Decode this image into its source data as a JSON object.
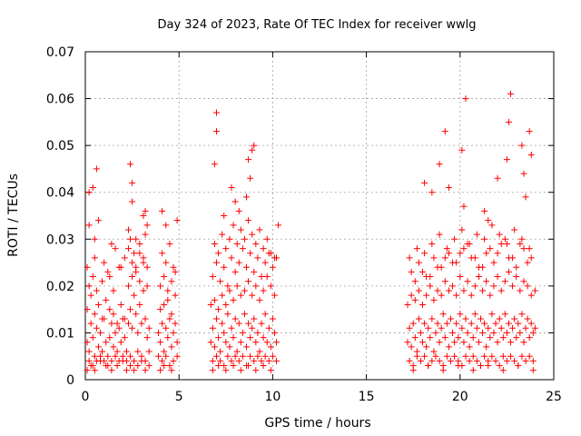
{
  "chart_data": {
    "type": "scatter",
    "title": "Day 324 of 2023, Rate Of TEC Index for receiver wwlg",
    "xlabel": "GPS time / hours",
    "ylabel": "ROTI / TECUs",
    "xlim": [
      0,
      25
    ],
    "ylim": [
      0,
      0.07
    ],
    "x_ticks": [
      0,
      5,
      10,
      15,
      20,
      25
    ],
    "x_tick_labels": [
      "0",
      "5",
      "10",
      "15",
      "20",
      "25"
    ],
    "y_ticks": [
      0,
      0.01,
      0.02,
      0.03,
      0.04,
      0.05,
      0.06,
      0.07
    ],
    "y_tick_labels": [
      "0",
      "0.01",
      "0.02",
      "0.03",
      "0.04",
      "0.05",
      "0.06",
      "0.07"
    ],
    "grid": true,
    "marker": "plus",
    "color": "#ff0000",
    "series": [
      {
        "x": [
          0.1,
          0.2,
          0.3,
          0.4,
          0.5,
          0.6,
          0.7,
          0.8,
          0.9,
          1.0,
          1.1,
          1.2,
          1.3,
          1.4,
          1.5,
          1.6,
          1.7,
          1.8,
          1.9,
          2.0,
          2.1,
          2.2,
          2.3,
          2.4,
          2.5,
          2.6,
          2.7,
          2.8,
          2.9,
          3.0,
          3.1,
          3.2,
          3.3,
          3.4,
          0.1,
          0.2,
          0.3,
          0.4,
          0.5,
          0.6,
          0.7,
          0.8,
          0.9,
          1.0,
          1.1,
          1.2,
          1.3,
          1.4,
          1.5,
          1.6,
          1.7,
          1.8,
          1.9,
          2.0,
          2.1,
          2.2,
          2.3,
          2.4,
          2.5,
          2.6,
          2.7,
          2.8,
          2.9,
          3.0,
          3.1,
          3.2,
          3.3,
          3.4,
          0.1,
          0.2,
          0.4,
          0.5,
          0.6,
          0.9,
          1.2,
          1.5,
          1.8,
          2.3,
          2.4,
          2.5,
          2.6,
          2.7,
          2.9,
          3.1,
          3.2,
          3.3,
          0.2,
          0.5,
          0.7,
          1.4,
          2.4,
          2.5,
          3.2,
          0.1,
          0.3,
          0.5,
          0.8,
          1.1,
          1.4,
          1.7,
          2.0,
          2.2,
          2.4,
          2.6,
          2.8,
          3.0,
          3.2,
          3.4,
          0.2,
          0.4,
          0.6,
          1.0,
          1.3,
          1.6,
          1.9,
          2.1,
          2.3,
          2.5,
          2.7,
          2.9,
          3.1,
          3.3
        ],
        "y": [
          0.008,
          0.006,
          0.012,
          0.009,
          0.005,
          0.011,
          0.007,
          0.01,
          0.006,
          0.013,
          0.008,
          0.005,
          0.009,
          0.012,
          0.007,
          0.01,
          0.006,
          0.011,
          0.008,
          0.013,
          0.009,
          0.006,
          0.012,
          0.015,
          0.011,
          0.018,
          0.014,
          0.01,
          0.016,
          0.012,
          0.019,
          0.013,
          0.009,
          0.011,
          0.015,
          0.004,
          0.018,
          0.003,
          0.014,
          0.004,
          0.016,
          0.005,
          0.013,
          0.004,
          0.017,
          0.003,
          0.015,
          0.004,
          0.014,
          0.005,
          0.012,
          0.004,
          0.016,
          0.005,
          0.013,
          0.004,
          0.02,
          0.005,
          0.022,
          0.004,
          0.024,
          0.006,
          0.021,
          0.005,
          0.025,
          0.004,
          0.02,
          0.006,
          0.024,
          0.02,
          0.022,
          0.026,
          0.019,
          0.021,
          0.023,
          0.019,
          0.024,
          0.028,
          0.03,
          0.025,
          0.027,
          0.023,
          0.029,
          0.026,
          0.031,
          0.024,
          0.04,
          0.03,
          0.034,
          0.029,
          0.046,
          0.042,
          0.036,
          0.002,
          0.003,
          0.002,
          0.004,
          0.003,
          0.002,
          0.003,
          0.004,
          0.002,
          0.003,
          0.002,
          0.003,
          0.004,
          0.002,
          0.003,
          0.033,
          0.041,
          0.045,
          0.025,
          0.022,
          0.028,
          0.024,
          0.026,
          0.032,
          0.038,
          0.03,
          0.027,
          0.035,
          0.033
        ]
      },
      {
        "x": [
          3.9,
          4.0,
          4.1,
          4.2,
          4.3,
          4.4,
          4.5,
          4.6,
          4.7,
          4.8,
          4.9,
          3.9,
          4.0,
          4.1,
          4.2,
          4.3,
          4.4,
          4.5,
          4.6,
          4.7,
          4.8,
          4.9,
          4.0,
          4.2,
          4.4,
          4.6,
          4.8,
          4.1,
          4.3,
          4.5,
          4.7,
          4.1,
          4.3,
          4.9,
          4.0,
          4.2,
          4.6
        ],
        "y": [
          0.01,
          0.008,
          0.012,
          0.006,
          0.011,
          0.009,
          0.013,
          0.007,
          0.01,
          0.012,
          0.008,
          0.005,
          0.015,
          0.004,
          0.016,
          0.005,
          0.017,
          0.003,
          0.014,
          0.004,
          0.018,
          0.005,
          0.02,
          0.022,
          0.019,
          0.021,
          0.023,
          0.027,
          0.025,
          0.029,
          0.024,
          0.036,
          0.033,
          0.034,
          0.002,
          0.003,
          0.002
        ]
      },
      {
        "x": [
          6.7,
          6.8,
          6.9,
          7.0,
          7.1,
          7.2,
          7.3,
          7.4,
          7.5,
          7.6,
          7.7,
          7.8,
          7.9,
          8.0,
          8.1,
          8.2,
          8.3,
          8.4,
          8.5,
          8.6,
          8.7,
          8.8,
          8.9,
          9.0,
          9.1,
          9.2,
          9.3,
          9.4,
          9.5,
          9.6,
          9.7,
          9.8,
          9.9,
          10.0,
          10.1,
          10.2,
          6.7,
          6.8,
          6.9,
          7.0,
          7.1,
          7.2,
          7.3,
          7.4,
          7.5,
          7.6,
          7.7,
          7.8,
          7.9,
          8.0,
          8.1,
          8.2,
          8.3,
          8.4,
          8.5,
          8.6,
          8.7,
          8.8,
          8.9,
          9.0,
          9.1,
          9.2,
          9.3,
          9.4,
          9.5,
          9.6,
          9.7,
          9.8,
          9.9,
          10.0,
          10.1,
          10.2,
          6.8,
          7.0,
          7.2,
          7.4,
          7.6,
          7.8,
          8.0,
          8.2,
          8.4,
          8.6,
          8.8,
          9.0,
          9.2,
          9.4,
          9.6,
          9.8,
          10.0,
          10.2,
          6.9,
          7.1,
          7.3,
          7.5,
          7.7,
          7.9,
          8.1,
          8.3,
          8.5,
          8.7,
          8.9,
          9.1,
          9.3,
          9.5,
          9.7,
          9.9,
          10.1,
          6.9,
          7.0,
          7.0,
          7.8,
          8.2,
          8.6,
          8.8,
          8.9,
          9.0,
          8.7,
          8.0,
          7.4,
          10.3,
          6.8,
          7.1,
          7.5,
          7.9,
          8.3,
          8.7,
          9.1,
          9.5,
          9.9
        ],
        "y": [
          0.008,
          0.011,
          0.007,
          0.013,
          0.009,
          0.006,
          0.012,
          0.01,
          0.008,
          0.014,
          0.007,
          0.011,
          0.009,
          0.013,
          0.006,
          0.012,
          0.008,
          0.01,
          0.014,
          0.007,
          0.012,
          0.009,
          0.011,
          0.013,
          0.008,
          0.01,
          0.006,
          0.012,
          0.009,
          0.014,
          0.008,
          0.011,
          0.007,
          0.013,
          0.01,
          0.008,
          0.016,
          0.004,
          0.017,
          0.005,
          0.015,
          0.004,
          0.018,
          0.003,
          0.016,
          0.005,
          0.019,
          0.004,
          0.017,
          0.005,
          0.02,
          0.004,
          0.018,
          0.005,
          0.019,
          0.003,
          0.021,
          0.005,
          0.018,
          0.004,
          0.02,
          0.005,
          0.017,
          0.004,
          0.019,
          0.005,
          0.022,
          0.004,
          0.02,
          0.005,
          0.018,
          0.004,
          0.022,
          0.025,
          0.021,
          0.024,
          0.02,
          0.026,
          0.023,
          0.025,
          0.028,
          0.024,
          0.027,
          0.023,
          0.026,
          0.022,
          0.025,
          0.027,
          0.024,
          0.026,
          0.029,
          0.027,
          0.031,
          0.028,
          0.03,
          0.033,
          0.029,
          0.032,
          0.03,
          0.034,
          0.031,
          0.029,
          0.032,
          0.028,
          0.03,
          0.027,
          0.026,
          0.046,
          0.057,
          0.053,
          0.041,
          0.036,
          0.039,
          0.043,
          0.049,
          0.05,
          0.047,
          0.038,
          0.035,
          0.033,
          0.002,
          0.003,
          0.002,
          0.003,
          0.002,
          0.003,
          0.002,
          0.003,
          0.002
        ]
      },
      {
        "x": [
          17.2,
          17.3,
          17.4,
          17.5,
          17.6,
          17.7,
          17.8,
          17.9,
          18.0,
          18.1,
          18.2,
          18.3,
          18.4,
          18.5,
          18.6,
          18.7,
          18.8,
          18.9,
          19.0,
          19.1,
          19.2,
          19.3,
          19.4,
          19.5,
          19.6,
          19.7,
          19.8,
          19.9,
          20.0,
          20.1,
          20.2,
          20.3,
          20.4,
          20.5,
          20.6,
          20.7,
          20.8,
          20.9,
          21.0,
          21.1,
          21.2,
          21.3,
          21.4,
          21.5,
          21.6,
          21.7,
          21.8,
          21.9,
          22.0,
          22.1,
          22.2,
          22.3,
          22.4,
          22.5,
          22.6,
          22.7,
          22.8,
          22.9,
          23.0,
          23.1,
          23.2,
          23.3,
          23.4,
          23.5,
          23.6,
          23.7,
          23.8,
          23.9,
          24.0,
          17.2,
          17.3,
          17.4,
          17.5,
          17.6,
          17.7,
          17.8,
          17.9,
          18.0,
          18.1,
          18.2,
          18.3,
          18.4,
          18.5,
          18.6,
          18.7,
          18.8,
          18.9,
          19.0,
          19.1,
          19.2,
          19.3,
          19.4,
          19.5,
          19.6,
          19.7,
          19.8,
          19.9,
          20.0,
          20.1,
          20.2,
          20.3,
          20.4,
          20.5,
          20.6,
          20.7,
          20.8,
          20.9,
          21.0,
          21.1,
          21.2,
          21.3,
          21.4,
          21.5,
          21.6,
          21.7,
          21.8,
          21.9,
          22.0,
          22.1,
          22.2,
          22.3,
          22.4,
          22.5,
          22.6,
          22.7,
          22.8,
          22.9,
          23.0,
          23.1,
          23.2,
          23.3,
          23.4,
          23.5,
          23.6,
          23.7,
          23.8,
          23.9,
          24.0,
          17.4,
          17.8,
          18.2,
          18.6,
          19.0,
          19.4,
          19.8,
          20.2,
          20.6,
          21.0,
          21.4,
          21.8,
          22.2,
          22.6,
          23.0,
          23.4,
          23.8,
          17.3,
          17.7,
          18.1,
          18.5,
          18.9,
          19.3,
          19.7,
          20.1,
          20.5,
          20.9,
          21.3,
          21.7,
          22.1,
          22.5,
          22.9,
          23.3,
          23.7,
          17.6,
          18.0,
          18.4,
          18.8,
          19.2,
          19.6,
          20.0,
          20.4,
          20.8,
          21.2,
          21.6,
          22.0,
          22.4,
          22.8,
          23.2,
          23.6,
          17.5,
          18.3,
          19.1,
          19.9,
          20.7,
          21.5,
          22.3,
          23.1,
          23.9,
          18.1,
          18.5,
          18.9,
          19.2,
          19.4,
          20.2,
          20.1,
          20.3,
          21.5,
          22.0,
          22.5,
          22.6,
          22.7,
          23.3,
          23.4,
          23.7,
          23.8,
          23.5,
          21.3
        ],
        "y": [
          0.008,
          0.011,
          0.007,
          0.012,
          0.009,
          0.006,
          0.013,
          0.01,
          0.008,
          0.012,
          0.007,
          0.011,
          0.009,
          0.013,
          0.006,
          0.01,
          0.012,
          0.008,
          0.011,
          0.014,
          0.009,
          0.012,
          0.007,
          0.013,
          0.01,
          0.008,
          0.012,
          0.009,
          0.014,
          0.011,
          0.008,
          0.013,
          0.01,
          0.007,
          0.012,
          0.009,
          0.014,
          0.011,
          0.008,
          0.013,
          0.01,
          0.012,
          0.007,
          0.011,
          0.009,
          0.014,
          0.01,
          0.012,
          0.008,
          0.013,
          0.011,
          0.009,
          0.014,
          0.01,
          0.012,
          0.008,
          0.011,
          0.013,
          0.009,
          0.012,
          0.01,
          0.014,
          0.008,
          0.011,
          0.013,
          0.009,
          0.012,
          0.01,
          0.011,
          0.016,
          0.004,
          0.018,
          0.003,
          0.017,
          0.005,
          0.019,
          0.004,
          0.016,
          0.005,
          0.018,
          0.003,
          0.02,
          0.004,
          0.017,
          0.005,
          0.019,
          0.004,
          0.018,
          0.003,
          0.021,
          0.005,
          0.019,
          0.004,
          0.02,
          0.005,
          0.018,
          0.004,
          0.022,
          0.003,
          0.019,
          0.005,
          0.021,
          0.004,
          0.018,
          0.005,
          0.02,
          0.004,
          0.022,
          0.003,
          0.019,
          0.005,
          0.021,
          0.004,
          0.018,
          0.005,
          0.02,
          0.004,
          0.022,
          0.003,
          0.019,
          0.005,
          0.021,
          0.004,
          0.023,
          0.005,
          0.02,
          0.004,
          0.022,
          0.003,
          0.019,
          0.005,
          0.021,
          0.004,
          0.02,
          0.005,
          0.018,
          0.004,
          0.019,
          0.023,
          0.025,
          0.022,
          0.026,
          0.024,
          0.027,
          0.025,
          0.028,
          0.026,
          0.024,
          0.027,
          0.025,
          0.029,
          0.026,
          0.024,
          0.028,
          0.026,
          0.026,
          0.028,
          0.027,
          0.029,
          0.031,
          0.028,
          0.03,
          0.032,
          0.029,
          0.031,
          0.03,
          0.033,
          0.031,
          0.029,
          0.032,
          0.03,
          0.028,
          0.021,
          0.023,
          0.022,
          0.024,
          0.026,
          0.025,
          0.027,
          0.029,
          0.026,
          0.024,
          0.028,
          0.027,
          0.03,
          0.026,
          0.029,
          0.025,
          0.002,
          0.003,
          0.002,
          0.003,
          0.002,
          0.003,
          0.002,
          0.003,
          0.002,
          0.042,
          0.04,
          0.046,
          0.053,
          0.041,
          0.037,
          0.049,
          0.06,
          0.034,
          0.043,
          0.047,
          0.055,
          0.061,
          0.05,
          0.044,
          0.053,
          0.048,
          0.039,
          0.036
        ]
      }
    ]
  }
}
